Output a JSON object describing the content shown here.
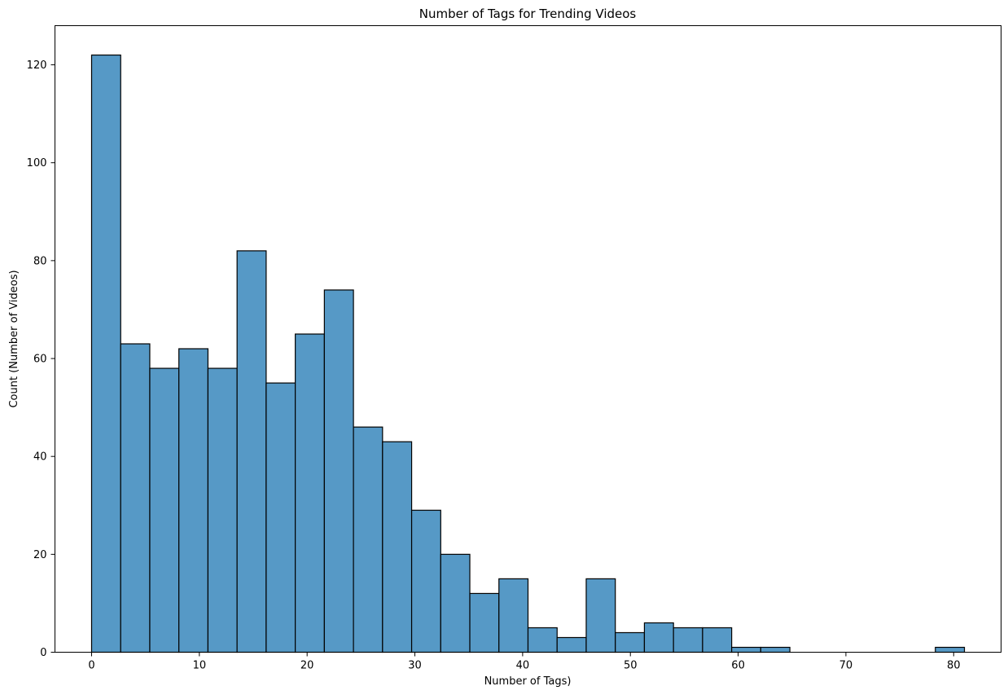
{
  "chart_data": {
    "type": "bar",
    "title": "Number of Tags for Trending Videos",
    "xlabel": "Number of Tags)",
    "ylabel": "Count (Number of Videos)",
    "bar_color": "#5699c6",
    "edge_color": "#000000",
    "bin_start": 0,
    "bin_width": 2.7,
    "values": [
      122,
      63,
      58,
      62,
      58,
      82,
      55,
      65,
      74,
      46,
      43,
      29,
      20,
      12,
      15,
      5,
      3,
      15,
      4,
      6,
      5,
      5,
      1,
      1,
      0,
      0,
      0,
      0,
      0,
      1
    ],
    "xlim": [
      -3.4,
      84.4
    ],
    "ylim": [
      0,
      128
    ],
    "xticks": [
      0,
      10,
      20,
      30,
      40,
      50,
      60,
      70,
      80
    ],
    "yticks": [
      0,
      20,
      40,
      60,
      80,
      100,
      120
    ],
    "grid": false,
    "legend": "none"
  }
}
